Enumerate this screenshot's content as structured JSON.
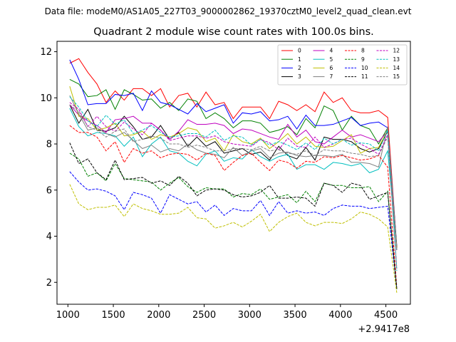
{
  "chart_data": {
    "type": "line",
    "suptitle": "Data file: modeM0/AS1A05_227T03_9000002862_19370cztM0_level2_quad_clean.evt",
    "title": "Quadrant 2 module wise count rates with 100.0s bins.",
    "xlabel": "",
    "ylabel": "",
    "offset_label": "+2.9417e8",
    "xlim": [
      880,
      4770
    ],
    "ylim": [
      1.05,
      12.45
    ],
    "xticks": [
      1000,
      1500,
      2000,
      2500,
      3000,
      3500,
      4000,
      4500
    ],
    "xtick_labels": [
      "1000",
      "1500",
      "2000",
      "2500",
      "3000",
      "3500",
      "4000",
      "4500"
    ],
    "yticks": [
      2,
      4,
      6,
      8,
      10,
      12
    ],
    "ytick_labels": [
      "2",
      "4",
      "6",
      "8",
      "10",
      "12"
    ],
    "legend_position": "upper-right",
    "x": [
      1020,
      1120,
      1220,
      1320,
      1420,
      1520,
      1620,
      1720,
      1820,
      1920,
      2020,
      2120,
      2220,
      2320,
      2420,
      2520,
      2620,
      2720,
      2820,
      2920,
      3020,
      3120,
      3220,
      3320,
      3420,
      3520,
      3620,
      3720,
      3820,
      3920,
      4020,
      4120,
      4220,
      4320,
      4420,
      4520,
      4620
    ],
    "series": [
      {
        "name": "0",
        "color": "#ff0000",
        "dash": "solid",
        "values": [
          11.5,
          11.7,
          11.1,
          10.6,
          9.8,
          10.3,
          9.9,
          10.4,
          10.4,
          10.1,
          10.4,
          9.6,
          10.1,
          10.2,
          9.6,
          10.25,
          9.7,
          9.8,
          9.1,
          9.6,
          9.6,
          9.6,
          9.1,
          9.85,
          9.7,
          9.45,
          9.7,
          9.4,
          10.25,
          9.8,
          10.0,
          9.45,
          9.35,
          9.35,
          9.45,
          9.15,
          3.5
        ]
      },
      {
        "name": "1",
        "color": "#008000",
        "dash": "solid",
        "values": [
          10.8,
          10.6,
          10.05,
          10.1,
          10.35,
          9.5,
          10.35,
          10.15,
          9.9,
          9.95,
          9.55,
          9.8,
          9.45,
          9.95,
          9.85,
          9.1,
          9.35,
          9.1,
          8.7,
          9.0,
          9.0,
          8.9,
          8.5,
          8.6,
          8.75,
          8.4,
          9.1,
          8.7,
          9.65,
          9.45,
          8.6,
          9.2,
          8.8,
          8.65,
          8.0,
          8.7,
          3.5
        ]
      },
      {
        "name": "2",
        "color": "#0000ff",
        "dash": "solid",
        "values": [
          11.65,
          10.8,
          9.7,
          9.75,
          9.75,
          10.15,
          10.1,
          10.2,
          9.45,
          10.3,
          9.8,
          9.7,
          9.5,
          9.3,
          9.75,
          9.4,
          9.55,
          9.7,
          8.9,
          9.35,
          9.3,
          9.4,
          9.0,
          9.05,
          9.2,
          8.65,
          9.25,
          8.8,
          8.8,
          8.85,
          9.0,
          9.15,
          8.8,
          8.9,
          8.95,
          8.7,
          3.6
        ]
      },
      {
        "name": "3",
        "color": "#000000",
        "dash": "solid",
        "values": [
          9.7,
          8.9,
          9.5,
          8.6,
          8.55,
          8.7,
          9.2,
          8.75,
          8.2,
          8.3,
          8.8,
          8.2,
          8.5,
          7.9,
          8.3,
          7.9,
          8.1,
          7.6,
          7.7,
          7.8,
          7.55,
          7.65,
          7.3,
          7.9,
          7.5,
          7.35,
          7.85,
          7.3,
          8.3,
          8.2,
          8.2,
          8.1,
          7.8,
          7.65,
          7.8,
          8.55,
          3.5
        ]
      },
      {
        "name": "4",
        "color": "#bf00bf",
        "dash": "solid",
        "values": [
          9.7,
          9.25,
          9.0,
          8.8,
          8.5,
          9.05,
          9.1,
          9.2,
          8.9,
          8.9,
          8.6,
          8.2,
          8.55,
          9.05,
          8.85,
          8.85,
          8.9,
          8.8,
          8.45,
          8.65,
          8.6,
          8.45,
          8.3,
          8.2,
          8.85,
          8.3,
          8.6,
          8.1,
          8.0,
          8.3,
          8.6,
          8.3,
          8.4,
          8.25,
          8.1,
          8.55,
          3.4
        ]
      },
      {
        "name": "5",
        "color": "#00bfbf",
        "dash": "solid",
        "values": [
          9.55,
          8.75,
          8.35,
          8.5,
          8.45,
          8.35,
          7.9,
          8.3,
          7.45,
          8.0,
          8.3,
          7.7,
          7.6,
          7.25,
          7.05,
          7.55,
          7.7,
          7.25,
          7.4,
          7.35,
          7.75,
          7.45,
          7.25,
          7.45,
          7.55,
          6.9,
          7.1,
          7.1,
          6.9,
          7.2,
          7.15,
          7.05,
          7.15,
          6.75,
          6.9,
          7.7,
          3.4
        ]
      },
      {
        "name": "6",
        "color": "#bfbf00",
        "dash": "solid",
        "values": [
          10.5,
          9.2,
          9.1,
          8.6,
          8.7,
          8.9,
          8.35,
          8.4,
          8.55,
          8.2,
          8.4,
          8.3,
          8.45,
          8.7,
          8.6,
          8.1,
          8.25,
          7.7,
          8.4,
          8.1,
          8.0,
          8.25,
          7.8,
          8.1,
          8.45,
          8.0,
          8.3,
          7.9,
          7.85,
          7.9,
          8.15,
          8.4,
          7.6,
          7.8,
          7.85,
          8.6,
          3.5
        ]
      },
      {
        "name": "7",
        "color": "#808080",
        "dash": "solid",
        "values": [
          10.1,
          9.3,
          8.6,
          8.7,
          8.45,
          8.3,
          8.5,
          8.15,
          7.8,
          7.95,
          7.65,
          7.8,
          7.7,
          8.0,
          7.75,
          7.6,
          7.55,
          7.4,
          7.85,
          7.5,
          7.7,
          7.8,
          7.4,
          7.6,
          7.65,
          7.5,
          7.45,
          7.5,
          7.5,
          7.45,
          7.55,
          7.2,
          7.2,
          7.15,
          7.0,
          8.75,
          3.4
        ]
      },
      {
        "name": "8",
        "color": "#ff0000",
        "dash": "dashed",
        "values": [
          8.8,
          8.5,
          8.5,
          8.3,
          7.7,
          8.1,
          7.2,
          7.8,
          7.6,
          7.7,
          7.4,
          7.55,
          7.6,
          7.55,
          7.3,
          7.6,
          7.5,
          6.85,
          7.2,
          7.5,
          7.6,
          7.2,
          6.85,
          7.3,
          7.2,
          6.95,
          7.25,
          7.2,
          7.45,
          7.4,
          7.5,
          7.4,
          7.3,
          7.35,
          7.5,
          7.0,
          1.8
        ]
      },
      {
        "name": "9",
        "color": "#008000",
        "dash": "dashed",
        "values": [
          7.6,
          7.35,
          6.6,
          6.75,
          6.4,
          7.15,
          6.5,
          6.45,
          6.4,
          6.35,
          6.0,
          6.3,
          6.55,
          6.15,
          5.9,
          6.1,
          6.05,
          6.05,
          5.7,
          5.85,
          5.8,
          6.05,
          5.6,
          5.7,
          5.8,
          5.45,
          5.95,
          5.5,
          6.3,
          6.2,
          6.2,
          6.1,
          6.1,
          6.15,
          5.5,
          5.95,
          1.7
        ]
      },
      {
        "name": "10",
        "color": "#0000ff",
        "dash": "dashed",
        "values": [
          6.8,
          6.35,
          6.0,
          6.05,
          5.95,
          5.75,
          5.15,
          5.9,
          5.8,
          5.65,
          5.0,
          5.8,
          5.6,
          5.4,
          5.5,
          5.05,
          5.35,
          4.9,
          5.2,
          5.1,
          5.1,
          5.55,
          4.9,
          5.5,
          5.0,
          5.1,
          5.0,
          5.05,
          4.9,
          5.2,
          5.35,
          5.3,
          5.3,
          5.2,
          5.25,
          5.3,
          1.75
        ]
      },
      {
        "name": "11",
        "color": "#000000",
        "dash": "dashed",
        "values": [
          8.05,
          7.15,
          7.35,
          6.75,
          6.45,
          7.3,
          6.45,
          6.5,
          6.55,
          6.3,
          6.4,
          6.2,
          6.6,
          6.3,
          5.75,
          6.0,
          6.05,
          6.0,
          5.8,
          5.7,
          5.75,
          5.9,
          6.2,
          5.65,
          5.65,
          5.7,
          5.65,
          5.3,
          6.3,
          6.2,
          5.9,
          6.3,
          6.2,
          5.6,
          5.75,
          5.9,
          1.7
        ]
      },
      {
        "name": "12",
        "color": "#bf00bf",
        "dash": "dashed",
        "values": [
          9.8,
          9.5,
          8.75,
          9.2,
          8.75,
          8.55,
          8.95,
          8.65,
          8.4,
          8.9,
          8.6,
          8.15,
          8.25,
          8.35,
          8.35,
          8.25,
          8.35,
          8.1,
          8.0,
          7.95,
          7.9,
          8.2,
          8.05,
          7.75,
          8.25,
          7.9,
          7.85,
          8.3,
          7.85,
          8.0,
          8.2,
          8.25,
          8.0,
          7.8,
          7.55,
          8.4,
          2.6
        ]
      },
      {
        "name": "13",
        "color": "#00bfbf",
        "dash": "dashed",
        "values": [
          10.05,
          9.6,
          9.0,
          8.75,
          9.25,
          8.85,
          9.05,
          8.45,
          8.6,
          8.8,
          8.5,
          8.3,
          8.35,
          8.45,
          8.45,
          8.3,
          8.6,
          8.15,
          8.35,
          8.3,
          7.95,
          8.2,
          7.95,
          8.1,
          7.95,
          7.75,
          8.05,
          7.75,
          8.25,
          8.0,
          8.2,
          7.95,
          8.05,
          8.0,
          7.7,
          8.6,
          2.5
        ]
      },
      {
        "name": "14",
        "color": "#bfbf00",
        "dash": "dashed",
        "values": [
          6.25,
          5.4,
          5.15,
          5.25,
          5.25,
          5.35,
          4.85,
          5.4,
          5.2,
          5.1,
          4.95,
          4.95,
          5.0,
          5.25,
          4.8,
          4.75,
          4.35,
          4.45,
          4.6,
          4.4,
          4.65,
          4.95,
          4.2,
          4.6,
          4.85,
          5.0,
          4.6,
          4.45,
          4.6,
          4.6,
          4.55,
          4.75,
          5.05,
          4.95,
          4.75,
          4.4,
          1.55
        ]
      },
      {
        "name": "15",
        "color": "#808080",
        "dash": "dashed",
        "values": [
          9.7,
          9.4,
          8.75,
          8.6,
          8.3,
          8.55,
          8.65,
          8.1,
          8.2,
          8.35,
          8.25,
          8.0,
          8.0,
          7.85,
          7.95,
          7.85,
          7.7,
          7.7,
          7.8,
          7.8,
          7.75,
          7.9,
          7.7,
          7.75,
          7.6,
          7.55,
          7.7,
          7.5,
          7.75,
          7.7,
          7.7,
          7.6,
          7.55,
          7.45,
          7.5,
          8.3,
          2.6
        ]
      }
    ]
  }
}
